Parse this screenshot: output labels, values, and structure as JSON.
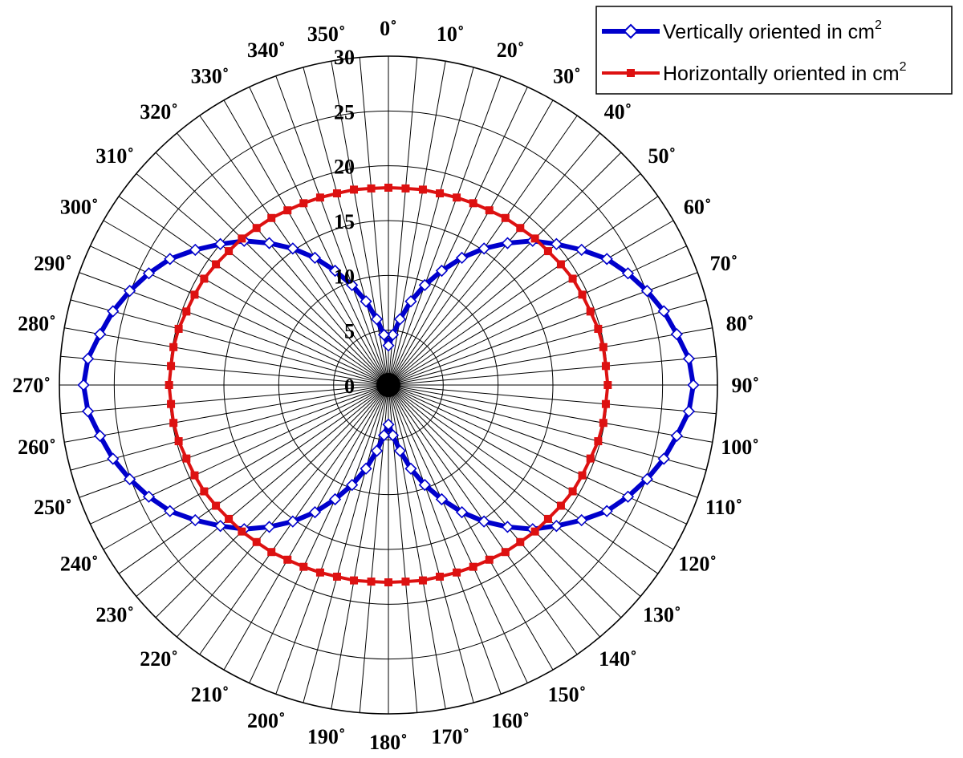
{
  "chart_data": {
    "type": "polar-line",
    "angle_unit": "degrees",
    "angle_direction": "clockwise",
    "zero_location": "top",
    "radial_ticks": [
      "0",
      "5",
      "10",
      "15",
      "20",
      "25",
      "30"
    ],
    "rlim": [
      0,
      30
    ],
    "angle_ticks": [
      "0˚",
      "10˚",
      "20˚",
      "30˚",
      "40˚",
      "50˚",
      "60˚",
      "70˚",
      "80˚",
      "90˚",
      "100˚",
      "110˚",
      "120˚",
      "130˚",
      "140˚",
      "150˚",
      "160˚",
      "170˚",
      "180˚",
      "190˚",
      "200˚",
      "210˚",
      "220˚",
      "230˚",
      "240˚",
      "250˚",
      "260˚",
      "270˚",
      "280˚",
      "290˚",
      "300˚",
      "310˚",
      "320˚",
      "330˚",
      "340˚",
      "350˚"
    ],
    "angle_step": 5,
    "grid": true,
    "legend_position": "top-right",
    "series": [
      {
        "name": "Vertically oriented in cm",
        "name_sup": "2",
        "color": "#0000cc",
        "marker": "diamond-open",
        "model": "r = 28 * |sin(theta)|",
        "angles": [
          0,
          5,
          10,
          15,
          20,
          25,
          30,
          35,
          40,
          45,
          50,
          55,
          60,
          65,
          70,
          75,
          80,
          85,
          90,
          95,
          100,
          105,
          110,
          115,
          120,
          125,
          130,
          135,
          140,
          145,
          150,
          155,
          160,
          165,
          170,
          175,
          180,
          185,
          190,
          195,
          200,
          205,
          210,
          215,
          220,
          225,
          230,
          235,
          240,
          245,
          250,
          255,
          260,
          265,
          270,
          275,
          280,
          285,
          290,
          295,
          300,
          305,
          310,
          315,
          320,
          325,
          330,
          335,
          340,
          345,
          350,
          355
        ],
        "values": [
          3.6,
          4.6,
          6.1,
          7.9,
          9.7,
          11.5,
          13.4,
          15.2,
          16.9,
          18.6,
          20.0,
          21.5,
          23.0,
          24.1,
          25.1,
          26.0,
          26.7,
          27.5,
          27.8,
          27.5,
          26.7,
          26.0,
          25.1,
          24.1,
          23.0,
          21.5,
          20.0,
          18.6,
          16.9,
          15.2,
          13.4,
          11.5,
          9.7,
          7.9,
          6.1,
          4.6,
          3.6,
          4.6,
          6.1,
          7.9,
          9.7,
          11.5,
          13.4,
          15.2,
          16.9,
          18.6,
          20.0,
          21.5,
          23.0,
          24.1,
          25.1,
          26.0,
          26.7,
          27.5,
          27.8,
          27.5,
          26.7,
          26.0,
          25.1,
          24.1,
          23.0,
          21.5,
          20.0,
          18.6,
          16.9,
          15.2,
          13.4,
          11.5,
          9.7,
          7.9,
          6.1,
          4.6
        ]
      },
      {
        "name": "Horizontally oriented in cm",
        "name_sup": "2",
        "color": "#dd1111",
        "marker": "square-filled",
        "model": "ellipse a=20 (x), b=18 (y)",
        "angles": [
          0,
          5,
          10,
          15,
          20,
          25,
          30,
          35,
          40,
          45,
          50,
          55,
          60,
          65,
          70,
          75,
          80,
          85,
          90,
          95,
          100,
          105,
          110,
          115,
          120,
          125,
          130,
          135,
          140,
          145,
          150,
          155,
          160,
          165,
          170,
          175,
          180,
          185,
          190,
          195,
          200,
          205,
          210,
          215,
          220,
          225,
          230,
          235,
          240,
          245,
          250,
          255,
          260,
          265,
          270,
          275,
          280,
          285,
          290,
          295,
          300,
          305,
          310,
          315,
          320,
          325,
          330,
          335,
          340,
          345,
          350,
          355
        ],
        "values": [
          18.0,
          18.0,
          18.1,
          18.1,
          18.2,
          18.3,
          18.4,
          18.6,
          18.7,
          18.9,
          19.0,
          19.2,
          19.4,
          19.5,
          19.6,
          19.8,
          19.9,
          19.9,
          20.0,
          19.9,
          19.9,
          19.8,
          19.6,
          19.5,
          19.4,
          19.2,
          19.0,
          18.9,
          18.7,
          18.6,
          18.4,
          18.3,
          18.2,
          18.1,
          18.1,
          18.0,
          18.0,
          18.0,
          18.1,
          18.1,
          18.2,
          18.3,
          18.4,
          18.6,
          18.7,
          18.9,
          19.0,
          19.2,
          19.4,
          19.5,
          19.6,
          19.8,
          19.9,
          19.9,
          20.0,
          19.9,
          19.9,
          19.8,
          19.6,
          19.5,
          19.4,
          19.2,
          19.0,
          18.9,
          18.7,
          18.6,
          18.4,
          18.3,
          18.2,
          18.1,
          18.1,
          18.0
        ]
      }
    ]
  }
}
